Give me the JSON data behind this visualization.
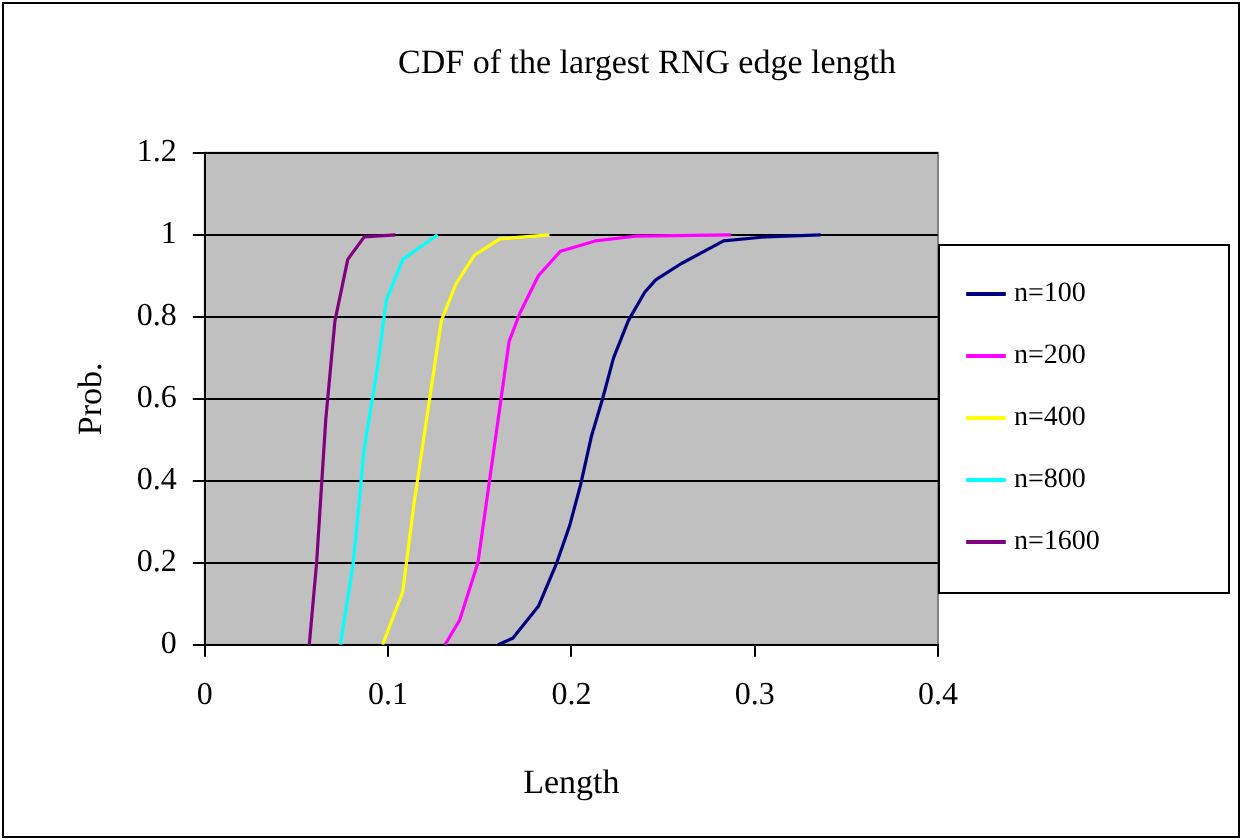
{
  "chart_data": {
    "type": "line",
    "title": "CDF of the largest RNG edge length",
    "xlabel": "Length",
    "ylabel": "Prob.",
    "xlim": [
      0,
      0.4
    ],
    "xticks": [
      0,
      0.1,
      0.2,
      0.3,
      0.4
    ],
    "ylim": [
      0,
      1.2
    ],
    "yticks": [
      0,
      0.2,
      0.4,
      0.6,
      0.8,
      1,
      1.2
    ],
    "grid": "y",
    "legend": "right",
    "marker": "none",
    "line_style": "solid",
    "series": [
      {
        "name": "n=100",
        "color": "#000080",
        "x": [
          0.16,
          0.168,
          0.182,
          0.192,
          0.199,
          0.205,
          0.211,
          0.217,
          0.223,
          0.231,
          0.24,
          0.246,
          0.26,
          0.283,
          0.306,
          0.336
        ],
        "values": [
          0,
          0.016,
          0.094,
          0.2,
          0.29,
          0.39,
          0.51,
          0.6,
          0.7,
          0.79,
          0.86,
          0.89,
          0.93,
          0.985,
          0.995,
          1
        ]
      },
      {
        "name": "n=200",
        "color": "#ff00ff",
        "x": [
          0.131,
          0.139,
          0.149,
          0.155,
          0.161,
          0.166,
          0.172,
          0.182,
          0.194,
          0.213,
          0.236,
          0.287
        ],
        "values": [
          0,
          0.06,
          0.2,
          0.39,
          0.58,
          0.74,
          0.81,
          0.9,
          0.96,
          0.985,
          0.997,
          1
        ]
      },
      {
        "name": "n=400",
        "color": "#ffff00",
        "x": [
          0.097,
          0.108,
          0.114,
          0.122,
          0.129,
          0.137,
          0.147,
          0.161,
          0.188
        ],
        "values": [
          0,
          0.13,
          0.34,
          0.58,
          0.79,
          0.88,
          0.95,
          0.99,
          1
        ]
      },
      {
        "name": "n=800",
        "color": "#00ffff",
        "x": [
          0.074,
          0.081,
          0.087,
          0.094,
          0.099,
          0.108,
          0.127
        ],
        "values": [
          0,
          0.2,
          0.48,
          0.67,
          0.84,
          0.94,
          1
        ]
      },
      {
        "name": "n=1600",
        "color": "#800080",
        "x": [
          0.057,
          0.061,
          0.066,
          0.071,
          0.078,
          0.087,
          0.104
        ],
        "values": [
          0,
          0.2,
          0.55,
          0.79,
          0.94,
          0.995,
          1
        ]
      }
    ]
  }
}
